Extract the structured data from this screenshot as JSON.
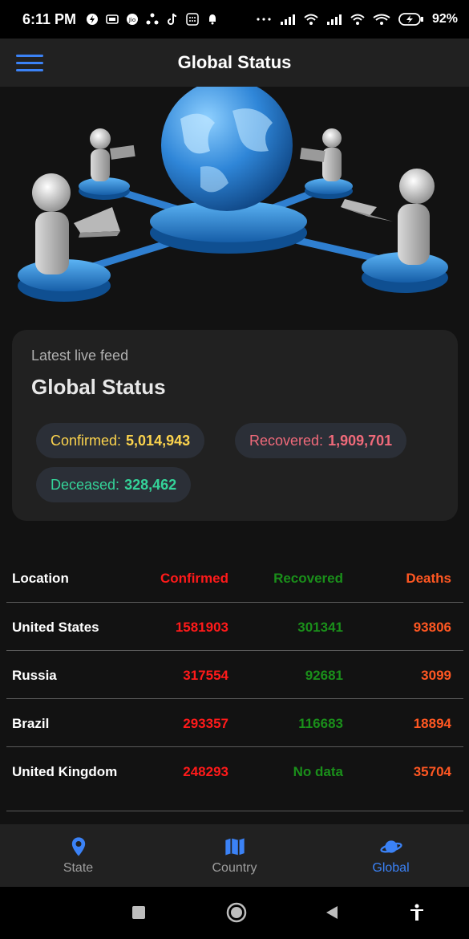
{
  "status_bar": {
    "time": "6:11 PM",
    "battery": "92%"
  },
  "app_bar": {
    "title": "Global Status",
    "menu_icon": "hamburger-menu-icon"
  },
  "card": {
    "subtitle": "Latest live feed",
    "title": "Global Status",
    "confirmed_label": "Confirmed:",
    "confirmed_value": "5,014,943",
    "recovered_label": "Recovered:",
    "recovered_value": "1,909,701",
    "deceased_label": "Deceased:",
    "deceased_value": "328,462"
  },
  "table": {
    "headers": {
      "location": "Location",
      "confirmed": "Confirmed",
      "recovered": "Recovered",
      "deaths": "Deaths"
    },
    "rows": [
      {
        "location": "United States",
        "confirmed": "1581903",
        "recovered": "301341",
        "deaths": "93806"
      },
      {
        "location": "Russia",
        "confirmed": "317554",
        "recovered": "92681",
        "deaths": "3099"
      },
      {
        "location": "Brazil",
        "confirmed": "293357",
        "recovered": "116683",
        "deaths": "18894"
      },
      {
        "location": "United Kingdom",
        "confirmed": "248293",
        "recovered": "No data",
        "deaths": "35704"
      }
    ]
  },
  "bottom_nav": {
    "items": [
      {
        "label": "State",
        "icon": "location-pin-icon"
      },
      {
        "label": "Country",
        "icon": "map-icon"
      },
      {
        "label": "Global",
        "icon": "planet-icon"
      }
    ],
    "active": "Global"
  },
  "colors": {
    "accent": "#3b82f6",
    "confirmed": "#ff1a1a",
    "recovered": "#1a8f1a",
    "deaths": "#ff5722",
    "chip_confirmed": "#fbd34d",
    "chip_recovered": "#f06a7a",
    "chip_deceased": "#34d399"
  }
}
